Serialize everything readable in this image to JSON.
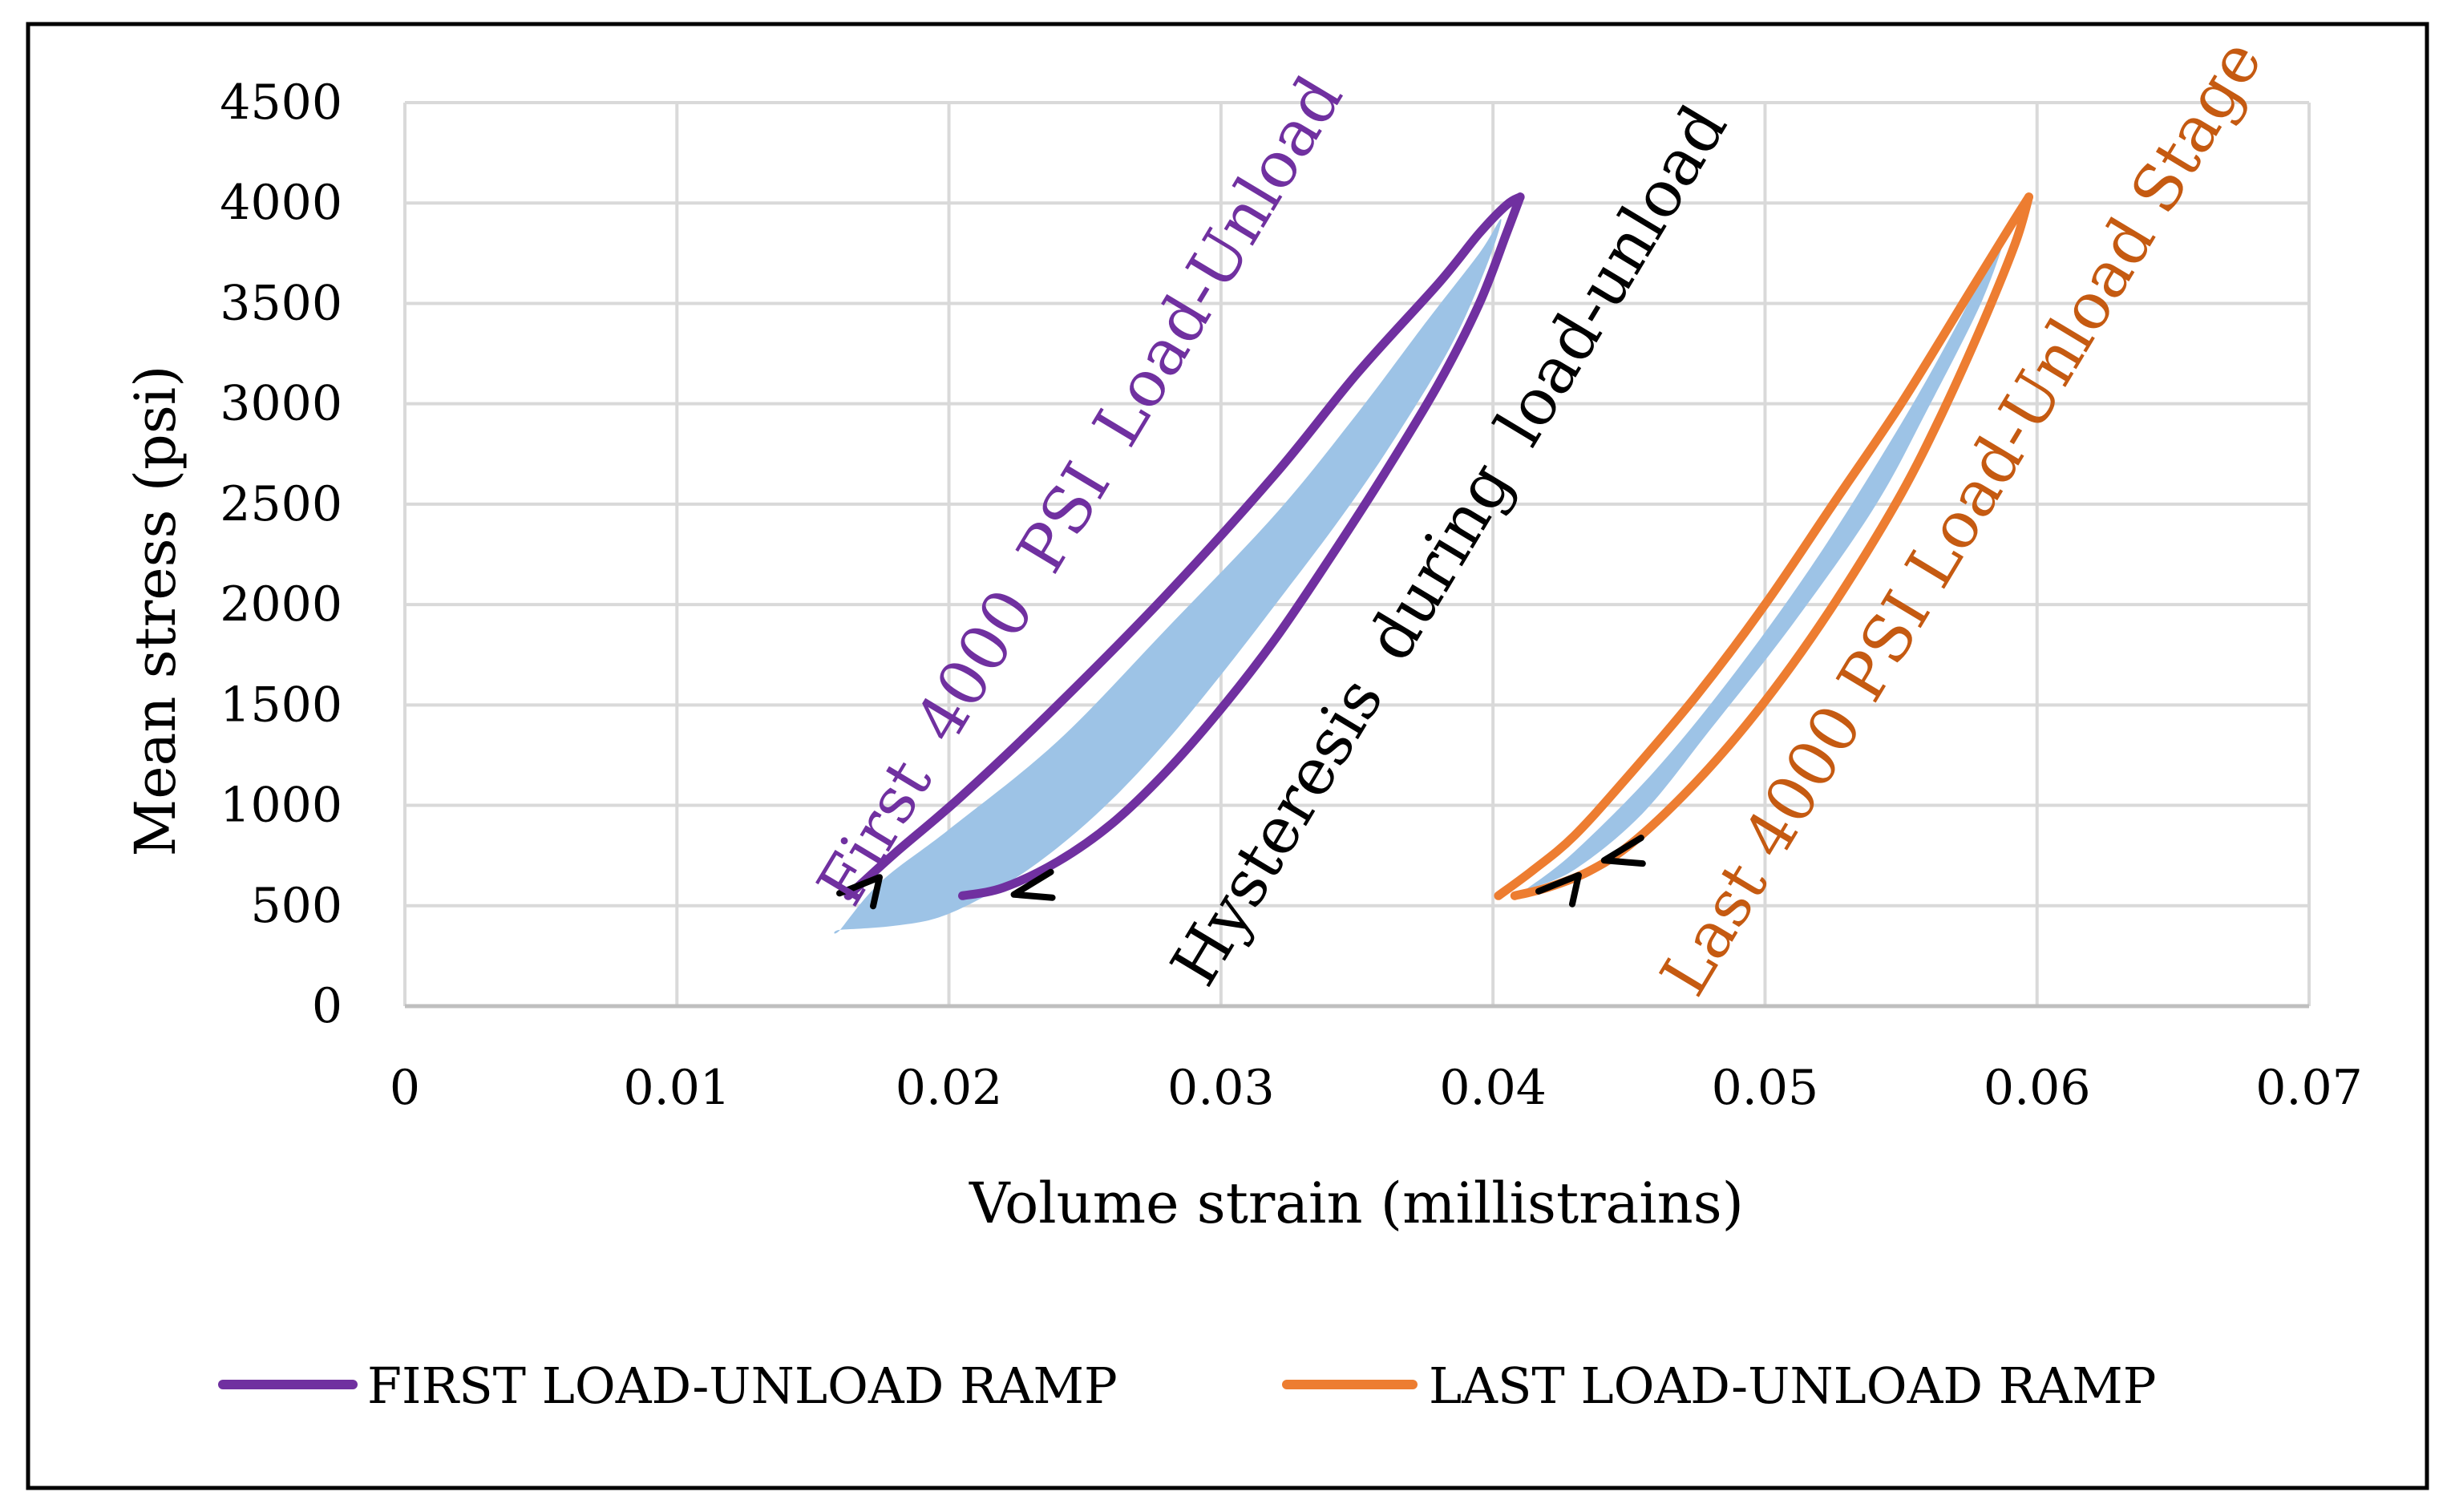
{
  "colors": {
    "first": "#7030a0",
    "last": "#ed7d31",
    "last_text": "#c55a11",
    "fill": "#9dc3e6",
    "grid": "#d9d9d9",
    "axis": "#bfbfbf",
    "text": "#000000",
    "border": "#000000"
  },
  "chart_data": {
    "type": "line",
    "title": "",
    "xlabel": "Volume strain (millistrains)",
    "ylabel": "Mean stress (psi)",
    "xlim": [
      0,
      0.07
    ],
    "ylim": [
      0,
      4500
    ],
    "x_ticks": [
      0,
      0.01,
      0.02,
      0.03,
      0.04,
      0.05,
      0.06,
      0.07
    ],
    "x_tick_labels": [
      "0",
      "0.01",
      "0.02",
      "0.03",
      "0.04",
      "0.05",
      "0.06",
      "0.07"
    ],
    "y_ticks": [
      0,
      500,
      1000,
      1500,
      2000,
      2500,
      3000,
      3500,
      4000,
      4500
    ],
    "y_tick_labels": [
      "0",
      "500",
      "1000",
      "1500",
      "2000",
      "2500",
      "3000",
      "3500",
      "4000",
      "4500"
    ],
    "grid": true,
    "legend_position": "bottom",
    "series": [
      {
        "name": "FIRST LOAD-UNLOAD RAMP",
        "color_key": "first",
        "loading": {
          "x": [
            0.0163,
            0.018,
            0.0205,
            0.024,
            0.028,
            0.032,
            0.035,
            0.038,
            0.0395,
            0.0405,
            0.041
          ],
          "y": [
            550,
            760,
            1050,
            1500,
            2050,
            2650,
            3150,
            3600,
            3850,
            3990,
            4030
          ]
        },
        "unloading": {
          "x": [
            0.041,
            0.0405,
            0.0395,
            0.038,
            0.036,
            0.034,
            0.032,
            0.03,
            0.028,
            0.026,
            0.024,
            0.022,
            0.0205
          ],
          "y": [
            4030,
            3850,
            3500,
            3100,
            2650,
            2230,
            1830,
            1480,
            1170,
            910,
            720,
            590,
            550
          ]
        }
      },
      {
        "name": "LAST LOAD-UNLOAD RAMP",
        "color_key": "last",
        "loading": {
          "x": [
            0.0402,
            0.0415,
            0.043,
            0.045,
            0.0475,
            0.05,
            0.0525,
            0.055,
            0.0575,
            0.059,
            0.0597
          ],
          "y": [
            550,
            680,
            850,
            1150,
            1550,
            2000,
            2500,
            3000,
            3550,
            3880,
            4030
          ]
        },
        "unloading": {
          "x": [
            0.0597,
            0.0592,
            0.058,
            0.0565,
            0.055,
            0.053,
            0.051,
            0.049,
            0.047,
            0.045,
            0.0435,
            0.042,
            0.0408
          ],
          "y": [
            4030,
            3800,
            3400,
            2950,
            2550,
            2100,
            1700,
            1350,
            1050,
            800,
            670,
            590,
            550
          ]
        }
      }
    ],
    "hysteresis_fill": [
      {
        "name": "first-ramp-hysteresis",
        "x": [
          0.016,
          0.0175,
          0.02,
          0.024,
          0.028,
          0.032,
          0.035,
          0.0375,
          0.0395,
          0.0403,
          0.0398,
          0.0385,
          0.0365,
          0.0345,
          0.032,
          0.03,
          0.028,
          0.026,
          0.024,
          0.022,
          0.0198,
          0.018,
          0.016
        ],
        "y": [
          380,
          620,
          880,
          1320,
          1880,
          2450,
          2950,
          3400,
          3750,
          3920,
          3700,
          3300,
          2850,
          2450,
          2000,
          1650,
          1320,
          1030,
          790,
          600,
          450,
          400,
          380
        ]
      },
      {
        "name": "last-ramp-hysteresis",
        "x": [
          0.0412,
          0.043,
          0.046,
          0.049,
          0.052,
          0.055,
          0.057,
          0.0588,
          0.058,
          0.056,
          0.054,
          0.051,
          0.048,
          0.0455,
          0.043,
          0.0412
        ],
        "y": [
          580,
          770,
          1180,
          1680,
          2250,
          2900,
          3380,
          3850,
          3520,
          2980,
          2480,
          1900,
          1380,
          960,
          680,
          580
        ]
      }
    ],
    "annotations": [
      {
        "text_parts": [
          "First",
          "4000",
          "PSI",
          "Load-Unload"
        ],
        "color_key": "first",
        "anchor": [
          0.0165,
          480
        ],
        "angle_deg": -59
      },
      {
        "text_parts": [
          "Hysteresis",
          "during",
          "load-unload"
        ],
        "color_key": "text",
        "anchor": [
          0.0295,
          80
        ],
        "angle_deg": -59
      },
      {
        "text": "Last 4000 PSI Load-Unload Stage",
        "color_key": "last_text",
        "anchor": [
          0.0475,
          30
        ],
        "angle_deg": -59
      }
    ],
    "direction_arrows": [
      {
        "x": 0.0168,
        "y": 610,
        "direction": "up"
      },
      {
        "x": 0.0228,
        "y": 580,
        "direction": "down"
      },
      {
        "x": 0.0425,
        "y": 620,
        "direction": "up"
      },
      {
        "x": 0.0445,
        "y": 750,
        "direction": "down"
      }
    ]
  }
}
